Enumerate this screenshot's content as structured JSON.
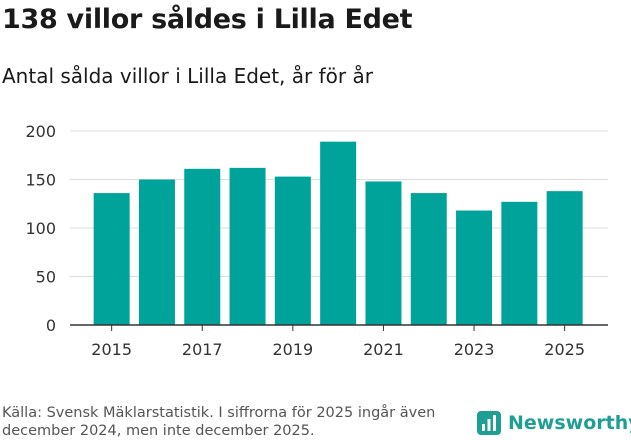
{
  "header": {
    "title": "138 villor såldes i Lilla Edet",
    "subtitle": "Antal sålda villor i Lilla Edet, år för år"
  },
  "footer": {
    "source": "Källa: Svensk Mäklarstatistik. I siffrorna för 2025 ingår även december 2024, men inte december 2025.",
    "brand": "Newsworthy",
    "brand_icon": "newsworthy-logo-icon"
  },
  "colors": {
    "bar": "#00a399",
    "grid": "#dddddd",
    "axis": "#333333",
    "brand": "#1f9e94"
  },
  "chart_data": {
    "type": "bar",
    "title": "Antal sålda villor i Lilla Edet, år för år",
    "categories": [
      "2015",
      "2016",
      "2017",
      "2018",
      "2019",
      "2020",
      "2021",
      "2022",
      "2023",
      "2024",
      "2025"
    ],
    "values": [
      136,
      150,
      161,
      162,
      153,
      189,
      148,
      136,
      118,
      127,
      138
    ],
    "x_tick_labels": [
      "2015",
      "2017",
      "2019",
      "2021",
      "2023",
      "2025"
    ],
    "y_ticks": [
      0,
      50,
      100,
      150,
      200
    ],
    "ylim": [
      0,
      200
    ],
    "xlabel": "",
    "ylabel": "",
    "grid": true,
    "legend": "none"
  }
}
